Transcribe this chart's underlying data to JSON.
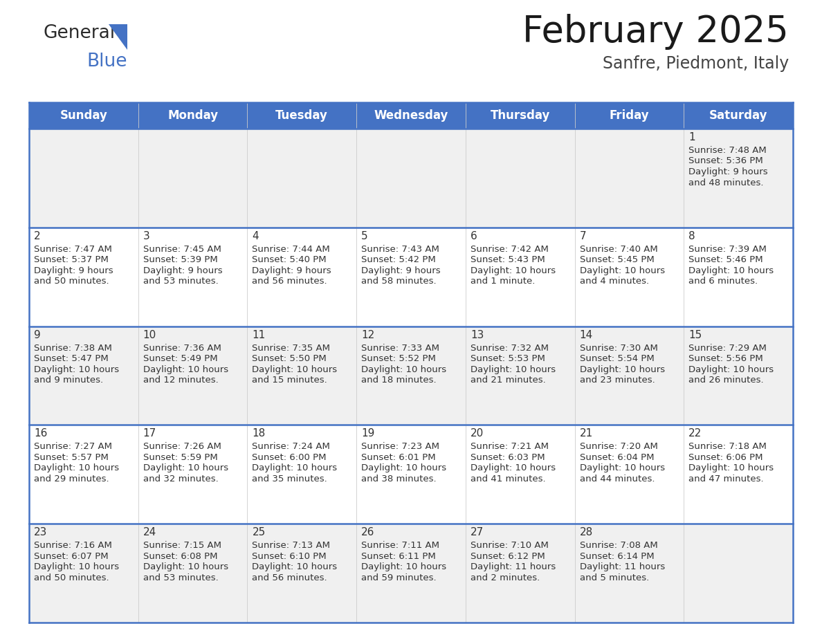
{
  "title": "February 2025",
  "subtitle": "Sanfre, Piedmont, Italy",
  "header_color": "#4472C4",
  "header_text_color": "#FFFFFF",
  "day_names": [
    "Sunday",
    "Monday",
    "Tuesday",
    "Wednesday",
    "Thursday",
    "Friday",
    "Saturday"
  ],
  "background_color": "#FFFFFF",
  "row_bg": [
    "#F0F0F0",
    "#FFFFFF",
    "#F0F0F0",
    "#FFFFFF",
    "#F0F0F0"
  ],
  "divider_color": "#4472C4",
  "text_color": "#333333",
  "days": [
    {
      "day": 1,
      "col": 6,
      "row": 0,
      "sunrise": "7:48 AM",
      "sunset": "5:36 PM",
      "daylight": "9 hours and 48 minutes."
    },
    {
      "day": 2,
      "col": 0,
      "row": 1,
      "sunrise": "7:47 AM",
      "sunset": "5:37 PM",
      "daylight": "9 hours and 50 minutes."
    },
    {
      "day": 3,
      "col": 1,
      "row": 1,
      "sunrise": "7:45 AM",
      "sunset": "5:39 PM",
      "daylight": "9 hours and 53 minutes."
    },
    {
      "day": 4,
      "col": 2,
      "row": 1,
      "sunrise": "7:44 AM",
      "sunset": "5:40 PM",
      "daylight": "9 hours and 56 minutes."
    },
    {
      "day": 5,
      "col": 3,
      "row": 1,
      "sunrise": "7:43 AM",
      "sunset": "5:42 PM",
      "daylight": "9 hours and 58 minutes."
    },
    {
      "day": 6,
      "col": 4,
      "row": 1,
      "sunrise": "7:42 AM",
      "sunset": "5:43 PM",
      "daylight": "10 hours and 1 minute."
    },
    {
      "day": 7,
      "col": 5,
      "row": 1,
      "sunrise": "7:40 AM",
      "sunset": "5:45 PM",
      "daylight": "10 hours and 4 minutes."
    },
    {
      "day": 8,
      "col": 6,
      "row": 1,
      "sunrise": "7:39 AM",
      "sunset": "5:46 PM",
      "daylight": "10 hours and 6 minutes."
    },
    {
      "day": 9,
      "col": 0,
      "row": 2,
      "sunrise": "7:38 AM",
      "sunset": "5:47 PM",
      "daylight": "10 hours and 9 minutes."
    },
    {
      "day": 10,
      "col": 1,
      "row": 2,
      "sunrise": "7:36 AM",
      "sunset": "5:49 PM",
      "daylight": "10 hours and 12 minutes."
    },
    {
      "day": 11,
      "col": 2,
      "row": 2,
      "sunrise": "7:35 AM",
      "sunset": "5:50 PM",
      "daylight": "10 hours and 15 minutes."
    },
    {
      "day": 12,
      "col": 3,
      "row": 2,
      "sunrise": "7:33 AM",
      "sunset": "5:52 PM",
      "daylight": "10 hours and 18 minutes."
    },
    {
      "day": 13,
      "col": 4,
      "row": 2,
      "sunrise": "7:32 AM",
      "sunset": "5:53 PM",
      "daylight": "10 hours and 21 minutes."
    },
    {
      "day": 14,
      "col": 5,
      "row": 2,
      "sunrise": "7:30 AM",
      "sunset": "5:54 PM",
      "daylight": "10 hours and 23 minutes."
    },
    {
      "day": 15,
      "col": 6,
      "row": 2,
      "sunrise": "7:29 AM",
      "sunset": "5:56 PM",
      "daylight": "10 hours and 26 minutes."
    },
    {
      "day": 16,
      "col": 0,
      "row": 3,
      "sunrise": "7:27 AM",
      "sunset": "5:57 PM",
      "daylight": "10 hours and 29 minutes."
    },
    {
      "day": 17,
      "col": 1,
      "row": 3,
      "sunrise": "7:26 AM",
      "sunset": "5:59 PM",
      "daylight": "10 hours and 32 minutes."
    },
    {
      "day": 18,
      "col": 2,
      "row": 3,
      "sunrise": "7:24 AM",
      "sunset": "6:00 PM",
      "daylight": "10 hours and 35 minutes."
    },
    {
      "day": 19,
      "col": 3,
      "row": 3,
      "sunrise": "7:23 AM",
      "sunset": "6:01 PM",
      "daylight": "10 hours and 38 minutes."
    },
    {
      "day": 20,
      "col": 4,
      "row": 3,
      "sunrise": "7:21 AM",
      "sunset": "6:03 PM",
      "daylight": "10 hours and 41 minutes."
    },
    {
      "day": 21,
      "col": 5,
      "row": 3,
      "sunrise": "7:20 AM",
      "sunset": "6:04 PM",
      "daylight": "10 hours and 44 minutes."
    },
    {
      "day": 22,
      "col": 6,
      "row": 3,
      "sunrise": "7:18 AM",
      "sunset": "6:06 PM",
      "daylight": "10 hours and 47 minutes."
    },
    {
      "day": 23,
      "col": 0,
      "row": 4,
      "sunrise": "7:16 AM",
      "sunset": "6:07 PM",
      "daylight": "10 hours and 50 minutes."
    },
    {
      "day": 24,
      "col": 1,
      "row": 4,
      "sunrise": "7:15 AM",
      "sunset": "6:08 PM",
      "daylight": "10 hours and 53 minutes."
    },
    {
      "day": 25,
      "col": 2,
      "row": 4,
      "sunrise": "7:13 AM",
      "sunset": "6:10 PM",
      "daylight": "10 hours and 56 minutes."
    },
    {
      "day": 26,
      "col": 3,
      "row": 4,
      "sunrise": "7:11 AM",
      "sunset": "6:11 PM",
      "daylight": "10 hours and 59 minutes."
    },
    {
      "day": 27,
      "col": 4,
      "row": 4,
      "sunrise": "7:10 AM",
      "sunset": "6:12 PM",
      "daylight": "11 hours and 2 minutes."
    },
    {
      "day": 28,
      "col": 5,
      "row": 4,
      "sunrise": "7:08 AM",
      "sunset": "6:14 PM",
      "daylight": "11 hours and 5 minutes."
    }
  ]
}
